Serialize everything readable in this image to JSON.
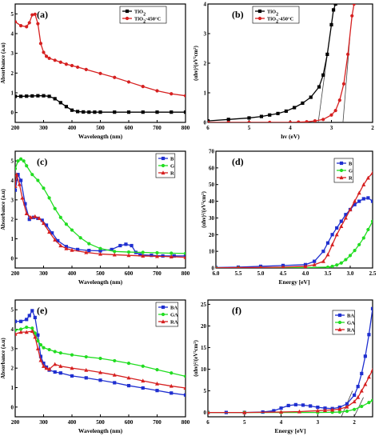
{
  "chart_data": [
    {
      "panel": "(a)",
      "type": "line",
      "xlabel": "Wavelength (nm)",
      "ylabel": "Absorbance (a.u)",
      "xlim": [
        200,
        800
      ],
      "ylim": [
        -0.5,
        5.5
      ],
      "xticks": [
        200,
        300,
        400,
        500,
        600,
        700,
        800
      ],
      "yticks": [
        0,
        1,
        2,
        3,
        4,
        5
      ],
      "legend": "top-right",
      "series": [
        {
          "name": "TiO2",
          "color": "#000000",
          "marker": "square",
          "x": [
            200,
            220,
            240,
            260,
            280,
            300,
            320,
            340,
            360,
            380,
            400,
            420,
            440,
            460,
            480,
            500,
            550,
            600,
            650,
            700,
            750,
            800
          ],
          "y": [
            0.82,
            0.82,
            0.83,
            0.84,
            0.85,
            0.85,
            0.82,
            0.7,
            0.5,
            0.3,
            0.12,
            0.05,
            0.03,
            0.02,
            0.02,
            0.02,
            0.02,
            0.02,
            0.02,
            0.02,
            0.02,
            0.02
          ]
        },
        {
          "name": "TiO2-450°C",
          "color": "#d62020",
          "marker": "circle",
          "x": [
            200,
            220,
            240,
            250,
            260,
            270,
            280,
            290,
            300,
            310,
            320,
            340,
            360,
            380,
            400,
            420,
            450,
            500,
            550,
            600,
            650,
            700,
            750,
            800
          ],
          "y": [
            4.6,
            4.4,
            4.35,
            4.55,
            4.95,
            4.98,
            4.5,
            3.5,
            3.05,
            2.85,
            2.75,
            2.65,
            2.55,
            2.45,
            2.38,
            2.3,
            2.18,
            1.98,
            1.78,
            1.55,
            1.32,
            1.1,
            0.95,
            0.85
          ]
        }
      ]
    },
    {
      "panel": "(b)",
      "type": "line",
      "xlabel": "hv (eV)",
      "ylabel": "(αhν)²(eV²cm²)",
      "xlim": [
        6,
        2
      ],
      "ylim": [
        0,
        4
      ],
      "xticks": [
        6,
        5,
        4,
        3,
        2
      ],
      "yticks": [
        0,
        1,
        2,
        3,
        4
      ],
      "legend": "top-left",
      "series": [
        {
          "name": "TiO2",
          "color": "#000000",
          "marker": "square",
          "x": [
            6,
            5.5,
            5.0,
            4.7,
            4.5,
            4.3,
            4.1,
            3.9,
            3.7,
            3.5,
            3.3,
            3.2,
            3.1,
            3.0,
            2.95,
            2.9
          ],
          "y": [
            0.05,
            0.1,
            0.15,
            0.2,
            0.25,
            0.3,
            0.38,
            0.5,
            0.65,
            0.85,
            1.2,
            1.6,
            2.3,
            3.3,
            3.8,
            4.0
          ]
        },
        {
          "name": "TiO2-450°C",
          "color": "#d62020",
          "marker": "circle",
          "x": [
            6,
            5.5,
            5.0,
            4.5,
            4.0,
            3.8,
            3.6,
            3.4,
            3.2,
            3.0,
            2.9,
            2.8,
            2.7,
            2.6,
            2.5,
            2.45
          ],
          "y": [
            0,
            0,
            0,
            0,
            0,
            0.01,
            0.02,
            0.05,
            0.1,
            0.25,
            0.4,
            0.75,
            1.3,
            2.3,
            3.6,
            4.0
          ]
        }
      ]
    },
    {
      "panel": "(c)",
      "type": "line",
      "xlabel": "Wavelength (nm)",
      "ylabel": "Absorbance (a.u)",
      "xlim": [
        200,
        800
      ],
      "ylim": [
        -0.5,
        5.5
      ],
      "xticks": [
        200,
        300,
        400,
        500,
        600,
        700,
        800
      ],
      "yticks": [
        0,
        1,
        2,
        3,
        4,
        5
      ],
      "legend": "top-right",
      "series": [
        {
          "name": "B",
          "color": "#1f2fd0",
          "marker": "square",
          "x": [
            200,
            210,
            220,
            235,
            250,
            265,
            280,
            295,
            310,
            330,
            350,
            380,
            420,
            460,
            500,
            540,
            570,
            590,
            610,
            625,
            640,
            680,
            720,
            760,
            800
          ],
          "y": [
            3.5,
            4.3,
            4.0,
            2.8,
            2.0,
            2.1,
            2.05,
            1.95,
            1.7,
            1.3,
            0.9,
            0.6,
            0.45,
            0.4,
            0.38,
            0.45,
            0.65,
            0.72,
            0.65,
            0.3,
            0.18,
            0.15,
            0.12,
            0.12,
            0.12
          ]
        },
        {
          "name": "G",
          "color": "#22dd22",
          "marker": "circle",
          "x": [
            200,
            210,
            220,
            230,
            240,
            260,
            280,
            300,
            320,
            340,
            360,
            380,
            400,
            430,
            460,
            500,
            550,
            600,
            650,
            700,
            750,
            800
          ],
          "y": [
            4.6,
            5.0,
            5.1,
            5.0,
            4.75,
            4.3,
            4.0,
            3.6,
            3.1,
            2.55,
            2.1,
            1.75,
            1.45,
            1.05,
            0.75,
            0.5,
            0.35,
            0.32,
            0.3,
            0.28,
            0.26,
            0.25
          ]
        },
        {
          "name": "R",
          "color": "#d62020",
          "marker": "triangle",
          "x": [
            200,
            205,
            215,
            225,
            240,
            255,
            270,
            285,
            300,
            320,
            340,
            360,
            380,
            400,
            450,
            500,
            550,
            600,
            650,
            700,
            750,
            800
          ],
          "y": [
            3.7,
            4.3,
            3.8,
            3.1,
            2.3,
            2.1,
            2.15,
            2.05,
            1.8,
            1.35,
            0.95,
            0.65,
            0.5,
            0.42,
            0.3,
            0.22,
            0.18,
            0.15,
            0.12,
            0.1,
            0.08,
            0.05
          ]
        }
      ]
    },
    {
      "panel": "(d)",
      "type": "line",
      "xlabel": "Energy [eV]",
      "ylabel": "(αhν)²/(eV²cm²)",
      "xlim": [
        6.0,
        2.5
      ],
      "ylim": [
        0,
        70
      ],
      "xticks": [
        "6.0",
        "5.5",
        "5.0",
        "4.5",
        "4.0",
        "3.5",
        "3.0",
        "2.5"
      ],
      "yticks": [
        0,
        10,
        20,
        30,
        40,
        50,
        60,
        70
      ],
      "legend": "top-right",
      "series": [
        {
          "name": "B",
          "color": "#1f2fd0",
          "marker": "square",
          "x": [
            6.0,
            5.5,
            5.0,
            4.5,
            4.0,
            3.8,
            3.6,
            3.5,
            3.4,
            3.3,
            3.2,
            3.1,
            3.0,
            2.9,
            2.8,
            2.7,
            2.6,
            2.5
          ],
          "y": [
            0.3,
            0.5,
            1,
            1.5,
            2,
            4,
            10,
            15,
            20,
            24,
            28,
            32,
            35,
            38,
            40,
            41.5,
            42,
            40
          ]
        },
        {
          "name": "G",
          "color": "#22dd22",
          "marker": "circle",
          "x": [
            6.0,
            5.5,
            5.0,
            4.5,
            4.0,
            3.5,
            3.4,
            3.3,
            3.2,
            3.1,
            3.0,
            2.9,
            2.8,
            2.7,
            2.6,
            2.5
          ],
          "y": [
            0.1,
            0.1,
            0.1,
            0.2,
            0.3,
            0.5,
            1,
            1.8,
            3,
            5,
            7.5,
            10.5,
            14,
            18,
            23,
            28
          ]
        },
        {
          "name": "R",
          "color": "#d62020",
          "marker": "triangle",
          "x": [
            6.0,
            5.5,
            5.0,
            4.5,
            4.0,
            3.8,
            3.6,
            3.5,
            3.4,
            3.3,
            3.2,
            3.1,
            3.0,
            2.9,
            2.8,
            2.7,
            2.6,
            2.5
          ],
          "y": [
            0.1,
            0.2,
            0.3,
            0.5,
            1,
            2,
            4,
            8,
            14,
            20,
            25,
            30,
            35,
            40,
            45,
            50,
            54,
            57
          ]
        }
      ]
    },
    {
      "panel": "(e)",
      "type": "line",
      "xlabel": "Wavelength (nm)",
      "ylabel": "Absorbance (a.u)",
      "xlim": [
        200,
        800
      ],
      "ylim": [
        -0.5,
        5.5
      ],
      "xticks": [
        200,
        300,
        400,
        500,
        600,
        700,
        800
      ],
      "yticks": [
        0,
        1,
        2,
        3,
        4,
        5
      ],
      "legend": "top-right",
      "series": [
        {
          "name": "BA",
          "color": "#1f2fd0",
          "marker": "square",
          "x": [
            200,
            220,
            240,
            250,
            260,
            270,
            280,
            290,
            300,
            310,
            320,
            340,
            360,
            400,
            450,
            500,
            550,
            600,
            650,
            700,
            750,
            800
          ],
          "y": [
            4.4,
            4.4,
            4.5,
            4.7,
            4.95,
            4.6,
            3.7,
            2.6,
            2.25,
            2.05,
            1.9,
            1.8,
            1.75,
            1.6,
            1.5,
            1.38,
            1.25,
            1.1,
            0.98,
            0.85,
            0.72,
            0.62
          ]
        },
        {
          "name": "GA",
          "color": "#22dd22",
          "marker": "circle",
          "x": [
            200,
            220,
            240,
            260,
            270,
            280,
            290,
            300,
            320,
            340,
            360,
            400,
            450,
            500,
            550,
            600,
            650,
            700,
            750,
            800
          ],
          "y": [
            3.95,
            4.0,
            4.1,
            4.05,
            3.8,
            3.4,
            3.2,
            3.05,
            2.95,
            2.85,
            2.78,
            2.68,
            2.58,
            2.5,
            2.38,
            2.25,
            2.1,
            1.92,
            1.75,
            1.58
          ]
        },
        {
          "name": "RA",
          "color": "#d62020",
          "marker": "triangle",
          "x": [
            200,
            220,
            240,
            260,
            270,
            280,
            290,
            300,
            310,
            320,
            340,
            360,
            400,
            450,
            500,
            550,
            600,
            650,
            700,
            750,
            800
          ],
          "y": [
            3.75,
            3.85,
            3.85,
            3.9,
            3.6,
            3.0,
            2.4,
            2.1,
            2.0,
            1.95,
            2.2,
            2.1,
            2.0,
            1.9,
            1.78,
            1.65,
            1.5,
            1.35,
            1.2,
            1.08,
            0.98
          ]
        }
      ]
    },
    {
      "panel": "(f)",
      "type": "line",
      "xlabel": "Energy [eV]",
      "ylabel": "(αhν)²/(eV²cm²)",
      "xlim": [
        6,
        1.5
      ],
      "ylim": [
        -1,
        26
      ],
      "xticks": [
        6,
        5,
        4,
        3,
        2
      ],
      "yticks": [
        0,
        5,
        10,
        15,
        20,
        25
      ],
      "legend": "top-right",
      "series": [
        {
          "name": "BA",
          "color": "#1f2fd0",
          "marker": "square",
          "x": [
            6.0,
            5.5,
            5.0,
            4.5,
            4.2,
            4.0,
            3.8,
            3.6,
            3.4,
            3.2,
            3.0,
            2.8,
            2.6,
            2.4,
            2.2,
            2.0,
            1.9,
            1.8,
            1.7,
            1.6,
            1.5
          ],
          "y": [
            0,
            0,
            0,
            0.1,
            0.4,
            1,
            1.6,
            1.8,
            1.7,
            1.5,
            1.2,
            1.0,
            0.9,
            1.2,
            2,
            4,
            6,
            9,
            13,
            18,
            24
          ]
        },
        {
          "name": "GA",
          "color": "#22dd22",
          "marker": "circle",
          "x": [
            6.0,
            5.0,
            4.0,
            3.0,
            2.6,
            2.4,
            2.2,
            2.0,
            1.8,
            1.6,
            1.5
          ],
          "y": [
            0,
            0,
            0,
            0,
            0.05,
            0.1,
            0.3,
            0.7,
            1.4,
            2.3,
            2.8
          ]
        },
        {
          "name": "RA",
          "color": "#d62020",
          "marker": "triangle",
          "x": [
            6.0,
            5.0,
            4.0,
            3.5,
            3.0,
            2.8,
            2.6,
            2.4,
            2.2,
            2.0,
            1.9,
            1.8,
            1.7,
            1.6,
            1.5
          ],
          "y": [
            0,
            0,
            0.1,
            0.2,
            0.4,
            0.5,
            0.6,
            0.8,
            1.3,
            2.5,
            3.5,
            5,
            6.5,
            8.2,
            9.8
          ]
        }
      ]
    }
  ]
}
